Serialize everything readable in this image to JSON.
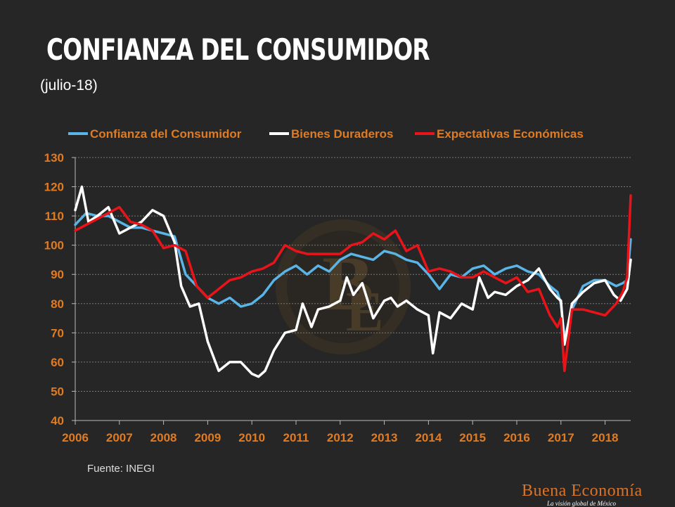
{
  "title": "CONFIANZA DEL CONSUMIDOR",
  "subtitle": "(julio-18)",
  "source": "Fuente: INEGI",
  "logo": {
    "name": "Buena Economía",
    "tagline": "La visión global de México"
  },
  "colors": {
    "background": "#262626",
    "axis_text": "#e07b22",
    "grid": "#7a7a7a"
  },
  "chart_data": {
    "type": "line",
    "grid": true,
    "legend_position": "top",
    "ylim": [
      40,
      130
    ],
    "yticks": [
      40,
      50,
      60,
      70,
      80,
      90,
      100,
      110,
      120,
      130
    ],
    "xlim": [
      2006,
      2018.58
    ],
    "xticks": [
      2006,
      2007,
      2008,
      2009,
      2010,
      2011,
      2012,
      2013,
      2014,
      2015,
      2016,
      2017,
      2018
    ],
    "series": [
      {
        "name": "Confianza del Consumidor",
        "color": "#5ab4e6",
        "x": [
          2006,
          2006.25,
          2006.5,
          2006.75,
          2007,
          2007.25,
          2007.5,
          2007.75,
          2008,
          2008.25,
          2008.5,
          2008.75,
          2009,
          2009.25,
          2009.5,
          2009.75,
          2010,
          2010.25,
          2010.5,
          2010.75,
          2011,
          2011.25,
          2011.5,
          2011.75,
          2012,
          2012.25,
          2012.5,
          2012.75,
          2013,
          2013.25,
          2013.5,
          2013.75,
          2014,
          2014.25,
          2014.5,
          2014.75,
          2015,
          2015.25,
          2015.5,
          2015.75,
          2016,
          2016.25,
          2016.5,
          2016.75,
          2016.92,
          2017,
          2017.08,
          2017.25,
          2017.5,
          2017.75,
          2018,
          2018.25,
          2018.4,
          2018.5,
          2018.58
        ],
        "y": [
          107,
          111,
          110,
          110,
          108,
          106,
          106,
          105,
          104,
          103,
          90,
          86,
          82,
          80,
          82,
          79,
          80,
          83,
          88,
          91,
          93,
          90,
          93,
          91,
          95,
          97,
          96,
          95,
          98,
          97,
          95,
          94,
          90,
          85,
          90,
          89,
          92,
          93,
          90,
          92,
          93,
          91,
          90,
          86,
          84,
          80,
          68,
          78,
          86,
          88,
          88,
          86,
          87,
          88,
          102
        ]
      },
      {
        "name": "Bienes Duraderos",
        "color": "#ffffff",
        "x": [
          2006,
          2006.15,
          2006.3,
          2006.5,
          2006.75,
          2007,
          2007.25,
          2007.5,
          2007.75,
          2008,
          2008.25,
          2008.4,
          2008.6,
          2008.8,
          2009,
          2009.25,
          2009.5,
          2009.75,
          2010,
          2010.15,
          2010.3,
          2010.5,
          2010.75,
          2011,
          2011.15,
          2011.35,
          2011.5,
          2011.75,
          2012,
          2012.15,
          2012.3,
          2012.5,
          2012.75,
          2013,
          2013.15,
          2013.3,
          2013.5,
          2013.75,
          2014,
          2014.1,
          2014.25,
          2014.5,
          2014.75,
          2015,
          2015.15,
          2015.35,
          2015.5,
          2015.75,
          2016,
          2016.25,
          2016.5,
          2016.75,
          2016.92,
          2017,
          2017.08,
          2017.25,
          2017.5,
          2017.75,
          2018,
          2018.2,
          2018.35,
          2018.5,
          2018.58
        ],
        "y": [
          112,
          120,
          108,
          110,
          113,
          104,
          106,
          108,
          112,
          110,
          101,
          86,
          79,
          80,
          67,
          57,
          60,
          60,
          56,
          55,
          57,
          64,
          70,
          71,
          80,
          72,
          78,
          79,
          81,
          89,
          83,
          87,
          75,
          81,
          82,
          79,
          81,
          78,
          76,
          63,
          77,
          75,
          80,
          78,
          89,
          82,
          84,
          83,
          86,
          88,
          92,
          85,
          82,
          81,
          66,
          80,
          84,
          87,
          88,
          83,
          81,
          85,
          95
        ]
      },
      {
        "name": "Expectativas Económicas",
        "color": "#e8141a",
        "x": [
          2006,
          2006.25,
          2006.5,
          2006.75,
          2007,
          2007.25,
          2007.5,
          2007.75,
          2008,
          2008.25,
          2008.5,
          2008.75,
          2009,
          2009.25,
          2009.5,
          2009.75,
          2010,
          2010.25,
          2010.5,
          2010.75,
          2011,
          2011.25,
          2011.5,
          2011.75,
          2012,
          2012.25,
          2012.5,
          2012.75,
          2013,
          2013.25,
          2013.5,
          2013.75,
          2014,
          2014.25,
          2014.5,
          2014.75,
          2015,
          2015.25,
          2015.5,
          2015.75,
          2016,
          2016.25,
          2016.5,
          2016.75,
          2016.92,
          2017,
          2017.08,
          2017.25,
          2017.5,
          2017.75,
          2018,
          2018.25,
          2018.4,
          2018.5,
          2018.58
        ],
        "y": [
          105,
          107,
          109,
          111,
          113,
          108,
          107,
          105,
          99,
          100,
          98,
          86,
          82,
          85,
          88,
          89,
          91,
          92,
          94,
          100,
          98,
          97,
          97,
          97,
          97,
          100,
          101,
          104,
          102,
          105,
          98,
          100,
          91,
          92,
          91,
          89,
          89,
          91,
          89,
          87,
          89,
          84,
          85,
          76,
          72,
          75,
          57,
          78,
          78,
          77,
          76,
          80,
          84,
          89,
          117
        ]
      }
    ]
  }
}
